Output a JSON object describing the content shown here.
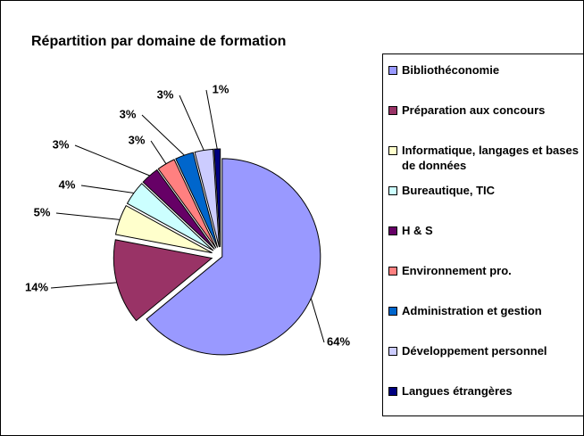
{
  "chart_data": {
    "type": "pie",
    "title": "Répartition par domaine de formation",
    "categories": [
      "Bibliothéconomie",
      "Préparation aux concours",
      "Informatique, langages et bases de données",
      "Bureautique, TIC",
      "H & S",
      "Environnement pro.",
      "Administration et gestion",
      "Développement personnel",
      "Langues étrangères"
    ],
    "values": [
      64,
      14,
      5,
      4,
      3,
      3,
      3,
      3,
      1
    ],
    "value_labels": [
      "64%",
      "14%",
      "5%",
      "4%",
      "3%",
      "3%",
      "3%",
      "3%",
      "1%"
    ],
    "colors": [
      "#9999ff",
      "#993366",
      "#ffffcc",
      "#ccffff",
      "#660066",
      "#ff8080",
      "#0066cc",
      "#ccccff",
      "#000080"
    ],
    "legend": "right"
  }
}
